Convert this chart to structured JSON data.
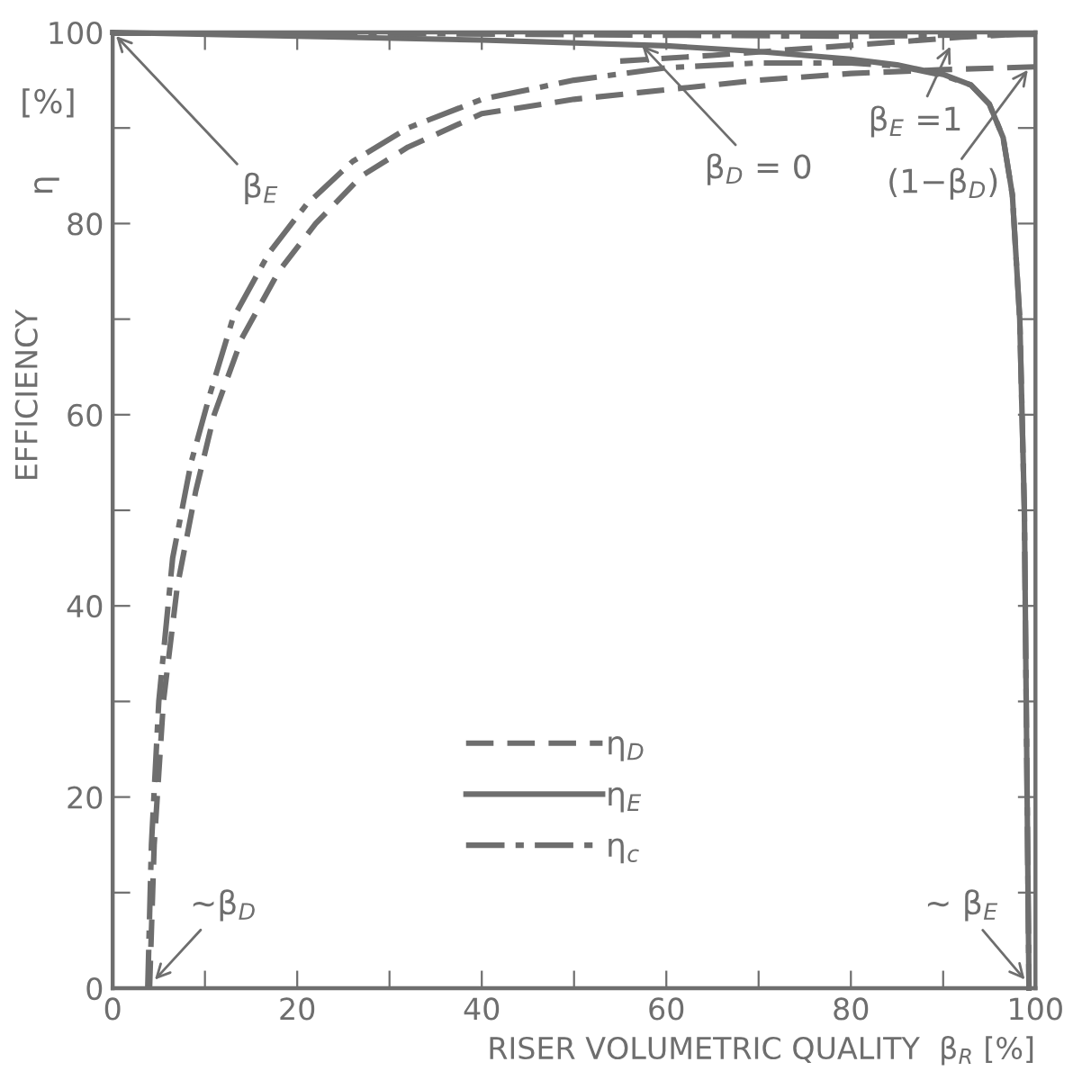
{
  "chart_data": {
    "type": "line",
    "xlabel": "RISER VOLUMETRIC QUALITY  β$_{R}$ [%]",
    "ylabel": "EFFICIENCY",
    "xlim": [
      0,
      100
    ],
    "ylim": [
      0,
      100
    ],
    "xticks": [
      0,
      {
        "value": 10,
        "label": null
      },
      20,
      {
        "value": 30,
        "label": null
      },
      40,
      {
        "value": 50,
        "label": null
      },
      60,
      {
        "value": 70,
        "label": null
      },
      80,
      {
        "value": 90,
        "label": null
      },
      100
    ],
    "yticks": [
      0,
      {
        "value": 10,
        "label": null
      },
      20,
      {
        "value": 30,
        "label": null
      },
      40,
      {
        "value": 50,
        "label": null
      },
      60,
      {
        "value": 70,
        "label": null
      },
      80,
      {
        "value": 90,
        "label": null
      },
      100
    ],
    "grid": false,
    "legend": "bottom",
    "marker": "none",
    "series": [
      {
        "name": "η$_{D}$",
        "color": "#6e6e6e",
        "line_style": "dashed",
        "x": [
          4,
          4.5,
          5.5,
          7,
          9,
          11,
          14,
          18,
          22,
          27,
          32,
          40,
          50,
          60,
          70,
          80,
          90,
          100
        ],
        "values": [
          0,
          15,
          30,
          42,
          52,
          60,
          68,
          75,
          80,
          85,
          88,
          91.5,
          93,
          94,
          95,
          95.7,
          96.1,
          96.4
        ]
      },
      {
        "name": "η$_{E}$",
        "color": "#6e6e6e",
        "line_style": "solid",
        "x": [
          0,
          20,
          40,
          60,
          70,
          80,
          85,
          90,
          93,
          95,
          96.5,
          97.5,
          98.3,
          98.8,
          99.1,
          99.3
        ],
        "values": [
          100,
          99.6,
          99.2,
          98.6,
          98,
          97.2,
          96.6,
          95.6,
          94.5,
          92.5,
          89,
          83,
          70,
          50,
          20,
          0
        ]
      },
      {
        "name": "η$_{c}$",
        "color": "#6e6e6e",
        "line_style": "dashdot",
        "x": [
          3.8,
          4.2,
          5,
          6.5,
          8.5,
          10.5,
          13,
          17,
          21,
          26,
          32,
          40,
          50,
          60,
          70,
          80,
          85,
          90,
          93,
          95,
          96.5,
          97.5,
          98.3,
          98.8,
          99.1,
          99.3
        ],
        "values": [
          0,
          15,
          30,
          45,
          55,
          62,
          70,
          77,
          82,
          86.5,
          90,
          93,
          95,
          96.3,
          96.8,
          96.8,
          96.5,
          95.5,
          94.5,
          92.5,
          89,
          83,
          70,
          50,
          20,
          0
        ]
      },
      {
        "color": "#6e6e6e",
        "line_style": "dashdot",
        "x": [
          0,
          30,
          60,
          80,
          100
        ],
        "values": [
          99.9,
          99.9,
          99.7,
          99.6,
          99.8
        ]
      },
      {
        "color": "#6e6e6e",
        "line_style": "dashed",
        "x": [
          55,
          65,
          75,
          85,
          92,
          100
        ],
        "values": [
          97.0,
          97.6,
          98.3,
          99.0,
          99.5,
          99.9
        ]
      }
    ],
    "annotations": [
      {
        "text": "β$_{E}$",
        "x": 0,
        "y": 100
      },
      {
        "text": "β$_{D}$ = 0",
        "x": 57,
        "y": 99
      },
      {
        "text": "β$_{E}$ =1",
        "x": 91,
        "y": 99
      },
      {
        "text": "(1−β$_{D}$)",
        "x": 99.5,
        "y": 96.5
      },
      {
        "text": "~β$_{D}$",
        "x": 4.2,
        "y": 0.5
      },
      {
        "text": "~ β$_{E}$",
        "x": 99.2,
        "y": 0.5
      },
      "η",
      "[%]"
    ]
  }
}
